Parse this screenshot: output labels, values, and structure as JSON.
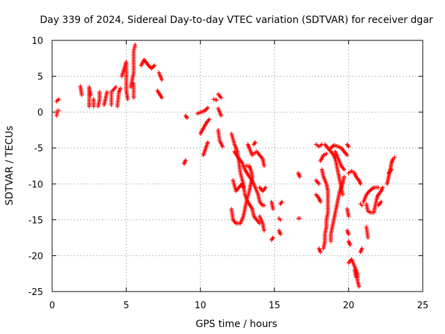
{
  "chart_data": {
    "type": "scatter",
    "title": "Day 339 of 2024, Sidereal Day-to-day VTEC variation (SDTVAR) for receiver dgar",
    "xlabel": "GPS time / hours",
    "ylabel": "SDTVAR / TECUs",
    "xlim": [
      0,
      25
    ],
    "ylim": [
      -25,
      10
    ],
    "xticks": [
      0,
      5,
      10,
      15,
      20,
      25
    ],
    "yticks": [
      10,
      5,
      0,
      -5,
      -10,
      -15,
      -20,
      -25
    ],
    "grid": true,
    "marker": "plus",
    "color": "#ff0000",
    "segments": [
      [
        [
          0.3,
          -0.5
        ],
        [
          0.35,
          0.2
        ],
        [
          0.45,
          0.2
        ]
      ],
      [
        [
          0.3,
          1.5
        ],
        [
          0.45,
          1.8
        ]
      ],
      [
        [
          1.9,
          3.6
        ],
        [
          2.0,
          2.4
        ]
      ],
      [
        [
          2.5,
          0.8
        ],
        [
          2.5,
          3.5
        ],
        [
          2.6,
          2.4
        ]
      ],
      [
        [
          2.8,
          0.8
        ],
        [
          2.8,
          1.8
        ]
      ],
      [
        [
          3.1,
          0.8
        ],
        [
          3.2,
          1.8
        ],
        [
          3.2,
          2.8
        ]
      ],
      [
        [
          3.5,
          1.0
        ],
        [
          3.7,
          2.8
        ]
      ],
      [
        [
          4.0,
          1.0
        ],
        [
          4.0,
          2.8
        ],
        [
          4.3,
          3.5
        ]
      ],
      [
        [
          4.4,
          0.8
        ],
        [
          4.5,
          2.8
        ],
        [
          4.6,
          3.3
        ]
      ],
      [
        [
          4.7,
          5.0
        ],
        [
          5.0,
          7.0
        ],
        [
          5.0,
          3.0
        ],
        [
          5.1,
          1.8
        ]
      ],
      [
        [
          5.3,
          3.5
        ],
        [
          5.5,
          5.5
        ],
        [
          5.5,
          8.5
        ],
        [
          5.6,
          9.4
        ]
      ],
      [
        [
          5.5,
          2.0
        ],
        [
          5.5,
          4.0
        ]
      ],
      [
        [
          6.0,
          6.5
        ],
        [
          6.2,
          7.3
        ],
        [
          6.5,
          6.5
        ],
        [
          6.7,
          6.1
        ],
        [
          6.9,
          6.5
        ]
      ],
      [
        [
          7.2,
          5.5
        ],
        [
          7.4,
          4.5
        ]
      ],
      [
        [
          7.1,
          3.0
        ],
        [
          7.4,
          2.0
        ]
      ],
      [
        [
          8.9,
          -7.2
        ],
        [
          9.0,
          -6.7
        ]
      ],
      [
        [
          9.0,
          -0.5
        ],
        [
          9.1,
          -0.8
        ]
      ],
      [
        [
          9.8,
          -0.2
        ],
        [
          10.3,
          0.2
        ],
        [
          10.5,
          0.6
        ]
      ],
      [
        [
          10.0,
          -3.0
        ],
        [
          10.4,
          -1.5
        ],
        [
          10.6,
          -1.0
        ]
      ],
      [
        [
          10.2,
          -6.0
        ],
        [
          10.5,
          -4.2
        ]
      ],
      [
        [
          10.9,
          1.8
        ],
        [
          11.1,
          1.7
        ]
      ],
      [
        [
          11.2,
          2.5
        ],
        [
          11.4,
          2.0
        ]
      ],
      [
        [
          11.2,
          0.5
        ],
        [
          11.4,
          -0.5
        ]
      ],
      [
        [
          11.2,
          -2.5
        ],
        [
          11.3,
          -4.0
        ],
        [
          11.5,
          -4.8
        ]
      ],
      [
        [
          12.1,
          -3.0
        ],
        [
          12.3,
          -4.5
        ],
        [
          12.5,
          -5.5
        ],
        [
          12.6,
          -7.0
        ],
        [
          12.7,
          -8.5
        ],
        [
          12.9,
          -10.0
        ],
        [
          13.0,
          -11.5
        ],
        [
          13.2,
          -12.5
        ],
        [
          13.5,
          -13.5
        ],
        [
          13.6,
          -14.5
        ],
        [
          13.8,
          -15.0
        ],
        [
          14.0,
          -15.5
        ]
      ],
      [
        [
          12.2,
          -9.5
        ],
        [
          12.4,
          -11.0
        ],
        [
          12.6,
          -10.5
        ],
        [
          12.8,
          -10.0
        ],
        [
          12.9,
          -10.5
        ]
      ],
      [
        [
          12.1,
          -13.5
        ],
        [
          12.2,
          -15.0
        ],
        [
          12.4,
          -15.5
        ],
        [
          12.7,
          -15.5
        ],
        [
          12.9,
          -14.5
        ],
        [
          13.0,
          -13.5
        ],
        [
          13.1,
          -12.5
        ],
        [
          13.3,
          -11.0
        ],
        [
          13.4,
          -10.0
        ],
        [
          13.5,
          -9.0
        ],
        [
          13.4,
          -8.0
        ],
        [
          13.3,
          -7.5
        ],
        [
          13.1,
          -7.5
        ]
      ],
      [
        [
          12.3,
          -5.5
        ],
        [
          12.6,
          -6.5
        ],
        [
          12.8,
          -7.0
        ],
        [
          13.0,
          -8.0
        ],
        [
          13.3,
          -9.0
        ],
        [
          13.5,
          -9.5
        ],
        [
          13.7,
          -10.5
        ],
        [
          13.9,
          -11.5
        ],
        [
          14.0,
          -12.5
        ],
        [
          14.2,
          -13.0
        ],
        [
          14.3,
          -13.0
        ]
      ],
      [
        [
          13.6,
          -5.8
        ],
        [
          13.8,
          -5.5
        ],
        [
          14.0,
          -6.0
        ],
        [
          14.2,
          -6.5
        ],
        [
          14.3,
          -7.5
        ]
      ],
      [
        [
          13.2,
          -4.5
        ],
        [
          13.3,
          -5.0
        ],
        [
          13.5,
          -6.0
        ]
      ],
      [
        [
          13.6,
          -4.5
        ],
        [
          13.7,
          -4.2
        ]
      ],
      [
        [
          14.0,
          -10.5
        ],
        [
          14.2,
          -11.0
        ],
        [
          14.4,
          -10.5
        ]
      ],
      [
        [
          14.0,
          -14.5
        ],
        [
          14.2,
          -15.5
        ],
        [
          14.3,
          -16.5
        ]
      ],
      [
        [
          14.8,
          -12.5
        ],
        [
          14.9,
          -13.5
        ]
      ],
      [
        [
          14.8,
          -17.8
        ],
        [
          14.9,
          -17.5
        ]
      ],
      [
        [
          15.4,
          -12.8
        ],
        [
          15.5,
          -12.5
        ]
      ],
      [
        [
          15.3,
          -14.8
        ],
        [
          15.4,
          -15.0
        ]
      ],
      [
        [
          15.3,
          -16.5
        ],
        [
          15.4,
          -17.0
        ]
      ],
      [
        [
          16.6,
          -8.5
        ],
        [
          16.7,
          -9.0
        ]
      ],
      [
        [
          16.6,
          -14.8
        ],
        [
          16.7,
          -14.8
        ]
      ],
      [
        [
          17.8,
          -4.5
        ],
        [
          18.0,
          -4.8
        ],
        [
          18.2,
          -4.5
        ]
      ],
      [
        [
          17.8,
          -9.5
        ],
        [
          18.0,
          -10.0
        ]
      ],
      [
        [
          17.8,
          -11.5
        ],
        [
          18.0,
          -12.0
        ],
        [
          18.1,
          -12.5
        ]
      ],
      [
        [
          18.1,
          -6.8
        ],
        [
          18.3,
          -6.0
        ],
        [
          18.5,
          -5.8
        ]
      ],
      [
        [
          18.2,
          -8.0
        ],
        [
          18.3,
          -9.0
        ],
        [
          18.5,
          -10.0
        ],
        [
          18.6,
          -11.0
        ],
        [
          18.6,
          -12.0
        ],
        [
          18.6,
          -13.0
        ],
        [
          18.6,
          -14.0
        ],
        [
          18.5,
          -15.0
        ],
        [
          18.5,
          -16.0
        ],
        [
          18.4,
          -17.0
        ],
        [
          18.4,
          -18.0
        ],
        [
          18.3,
          -19.0
        ]
      ],
      [
        [
          18.0,
          -19.0
        ],
        [
          18.1,
          -19.5
        ]
      ],
      [
        [
          18.4,
          -4.5
        ],
        [
          18.6,
          -5.0
        ],
        [
          18.8,
          -5.5
        ],
        [
          19.0,
          -6.0
        ],
        [
          19.1,
          -6.5
        ],
        [
          19.2,
          -7.5
        ],
        [
          19.3,
          -8.5
        ],
        [
          19.4,
          -9.5
        ],
        [
          19.5,
          -10.5
        ],
        [
          19.6,
          -11.5
        ]
      ],
      [
        [
          19.7,
          -9.0
        ],
        [
          19.6,
          -10.0
        ],
        [
          19.4,
          -11.0
        ],
        [
          19.3,
          -12.0
        ],
        [
          19.2,
          -13.0
        ],
        [
          19.1,
          -14.0
        ],
        [
          19.0,
          -15.0
        ],
        [
          18.9,
          -16.0
        ],
        [
          18.8,
          -17.0
        ],
        [
          18.8,
          -18.0
        ]
      ],
      [
        [
          18.8,
          -5.0
        ],
        [
          19.0,
          -4.6
        ],
        [
          19.3,
          -4.8
        ],
        [
          19.5,
          -5.0
        ],
        [
          19.7,
          -5.5
        ],
        [
          19.9,
          -6.0
        ]
      ],
      [
        [
          19.1,
          -5.5
        ],
        [
          19.3,
          -6.5
        ],
        [
          19.5,
          -7.5
        ],
        [
          19.7,
          -8.0
        ]
      ],
      [
        [
          19.9,
          -4.5
        ],
        [
          20.0,
          -4.8
        ]
      ],
      [
        [
          19.9,
          -13.5
        ],
        [
          20.0,
          -14.5
        ]
      ],
      [
        [
          19.9,
          -16.5
        ],
        [
          20.0,
          -17.0
        ]
      ],
      [
        [
          20.0,
          -18.0
        ],
        [
          20.1,
          -18.5
        ]
      ],
      [
        [
          20.0,
          -8.5
        ],
        [
          20.2,
          -8.2
        ],
        [
          20.4,
          -8.5
        ],
        [
          20.5,
          -9.0
        ],
        [
          20.7,
          -9.5
        ],
        [
          20.8,
          -10.0
        ]
      ],
      [
        [
          20.0,
          -21.0
        ],
        [
          20.2,
          -20.5
        ],
        [
          20.4,
          -21.5
        ],
        [
          20.6,
          -22.5
        ],
        [
          20.6,
          -23.5
        ],
        [
          20.7,
          -24.3
        ]
      ],
      [
        [
          20.4,
          -22.0
        ],
        [
          20.5,
          -23.0
        ]
      ],
      [
        [
          20.8,
          -12.8
        ],
        [
          20.9,
          -13.0
        ]
      ],
      [
        [
          20.8,
          -19.5
        ],
        [
          20.9,
          -19.0
        ]
      ],
      [
        [
          21.0,
          -12.5
        ],
        [
          21.2,
          -11.5
        ],
        [
          21.4,
          -11.0
        ],
        [
          21.7,
          -10.5
        ],
        [
          22.0,
          -10.5
        ]
      ],
      [
        [
          21.2,
          -16.0
        ],
        [
          21.3,
          -17.5
        ]
      ],
      [
        [
          21.2,
          -12.8
        ],
        [
          21.3,
          -13.8
        ],
        [
          21.5,
          -14.0
        ],
        [
          21.7,
          -14.0
        ],
        [
          21.8,
          -13.0
        ],
        [
          21.9,
          -12.0
        ],
        [
          22.0,
          -11.5
        ],
        [
          22.2,
          -11.0
        ],
        [
          22.3,
          -10.5
        ]
      ],
      [
        [
          22.0,
          -13.0
        ],
        [
          22.2,
          -12.5
        ]
      ],
      [
        [
          22.6,
          -10.0
        ],
        [
          22.7,
          -9.0
        ],
        [
          22.8,
          -8.0
        ],
        [
          22.9,
          -7.0
        ],
        [
          23.0,
          -6.5
        ],
        [
          23.1,
          -6.3
        ]
      ],
      [
        [
          22.7,
          -8.5
        ],
        [
          22.9,
          -8.0
        ]
      ]
    ]
  }
}
